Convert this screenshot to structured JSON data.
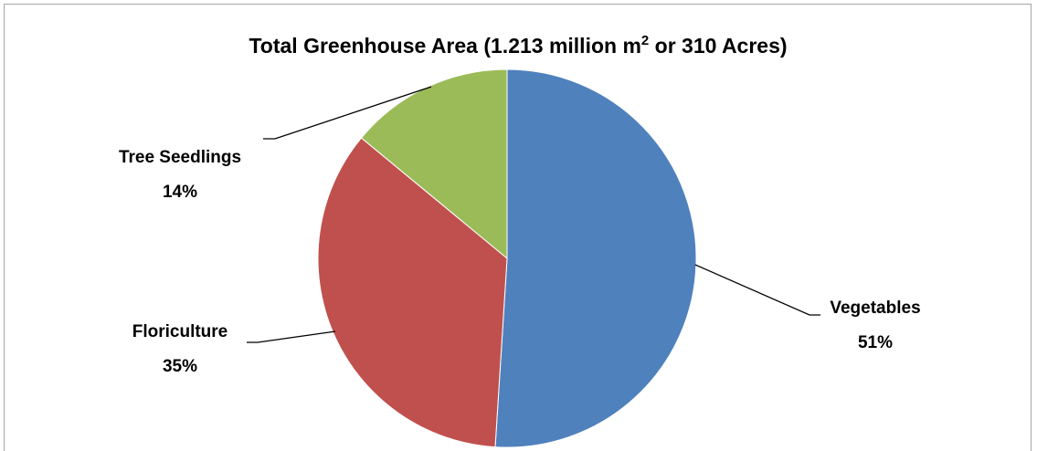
{
  "chart_data": {
    "type": "pie",
    "title": {
      "main": "Total Greenhouse Area (1.213 million m",
      "superscript": "2",
      "rest": " or 310 Acres)"
    },
    "start_angle_deg": 0,
    "direction": "clockwise",
    "legend": "none",
    "slices": [
      {
        "name": "Vegetables",
        "value": 51,
        "percent_label": "51%",
        "color": "#4f81bd"
      },
      {
        "name": "Floriculture",
        "value": 35,
        "percent_label": "35%",
        "color": "#c0504d"
      },
      {
        "name": "Tree Seedlings",
        "value": 14,
        "percent_label": "14%",
        "color": "#9bbb59"
      }
    ]
  }
}
